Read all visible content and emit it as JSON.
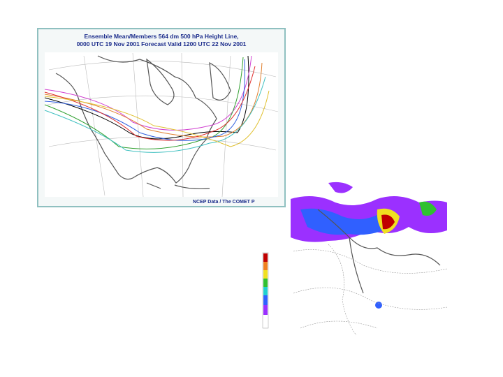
{
  "slide": {
    "map1": {
      "title_line1": "Ensemble Mean/Members 564 dm 500 hPa Height Line,",
      "title_line2": "0000 UTC  19 Nov 2001 Forecast Valid 1200 UTC  22 Nov 2001",
      "credit": "NCEP Data / The COMET P"
    }
  }
}
